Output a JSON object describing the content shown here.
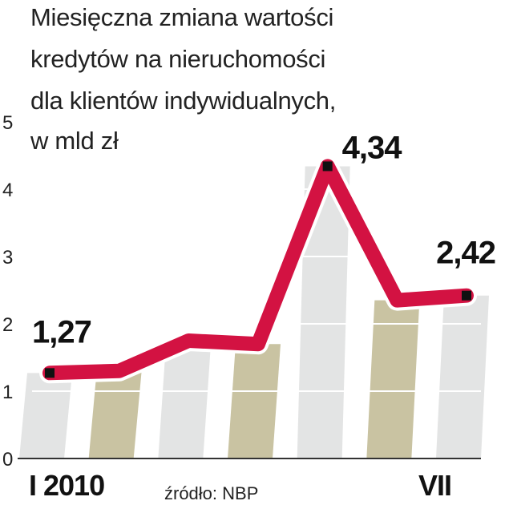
{
  "title_lines": [
    "Miesięczna zmiana wartości",
    "kredytów na nieruchomości",
    "dla klientów indywidualnych,",
    "w mld zł"
  ],
  "source": "źródło: NBP",
  "colors": {
    "line": "#d31242",
    "marker": "#111111",
    "band_olive": "#c9c3a2",
    "band_light": "#e3e4e4",
    "axis": "#333333",
    "grid": "#ffffff"
  },
  "chart_data": {
    "type": "line",
    "title": "Miesięczna zmiana wartości kredytów na nieruchomości dla klientów indywidualnych, w mld zł",
    "x_tick_labels": [
      "I 2010",
      "VII"
    ],
    "ylim": [
      0,
      5
    ],
    "y_ticks": [
      "0",
      "1",
      "2",
      "3",
      "4",
      "5"
    ],
    "values": [
      1.27,
      1.3,
      1.75,
      1.7,
      4.34,
      2.35,
      2.42
    ],
    "data_labels": [
      {
        "index": 0,
        "text": "1,27"
      },
      {
        "index": 4,
        "text": "4,34"
      },
      {
        "index": 6,
        "text": "2,42"
      }
    ],
    "source": "źródło: NBP"
  }
}
